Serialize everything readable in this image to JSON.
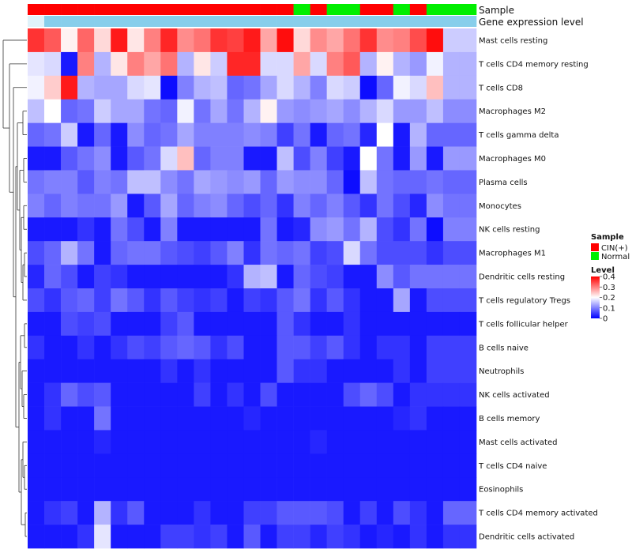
{
  "chart_data": {
    "type": "heatmap",
    "annotation_labels": {
      "sample": "Sample",
      "gene_level": "Gene expression level"
    },
    "sample_groups": [
      "CIN(+)",
      "CIN(+)",
      "CIN(+)",
      "CIN(+)",
      "CIN(+)",
      "CIN(+)",
      "CIN(+)",
      "CIN(+)",
      "CIN(+)",
      "CIN(+)",
      "CIN(+)",
      "CIN(+)",
      "CIN(+)",
      "CIN(+)",
      "CIN(+)",
      "CIN(+)",
      "Normal",
      "CIN(+)",
      "Normal",
      "Normal",
      "CIN(+)",
      "CIN(+)",
      "Normal",
      "CIN(+)",
      "Normal",
      "Normal",
      "Normal"
    ],
    "group_colors": {
      "CIN(+)": "#ff0000",
      "Normal": "#00ee00"
    },
    "gene_level_color": "#87ceeb",
    "gene_level_first_color": "#e0f2fa",
    "color_scale": {
      "low": "#0000ff",
      "mid": "#ffffff",
      "high": "#ff0000",
      "min": 0,
      "mid_value": 0.2,
      "max": 0.4
    },
    "rows": [
      "Mast cells resting",
      "T cells CD4 memory resting",
      "T cells CD8",
      "Macrophages M2",
      "T cells gamma delta",
      "Macrophages M0",
      "Plasma cells",
      "Monocytes",
      "NK cells resting",
      "Macrophages M1",
      "Dendritic cells resting",
      "T cells regulatory  Tregs",
      "T cells follicular helper",
      "B cells naive",
      "Neutrophils",
      "NK cells activated",
      "B cells memory",
      "Mast cells activated",
      "T cells CD4 naive",
      "Eosinophils",
      "T cells CD4 memory activated",
      "Dendritic cells activated"
    ],
    "values": [
      [
        0.36,
        0.33,
        0.21,
        0.32,
        0.23,
        0.38,
        0.22,
        0.3,
        0.37,
        0.29,
        0.31,
        0.36,
        0.35,
        0.38,
        0.27,
        0.39,
        0.23,
        0.29,
        0.27,
        0.31,
        0.36,
        0.29,
        0.3,
        0.34,
        0.39,
        0.16,
        0.16
      ],
      [
        0.18,
        0.17,
        0.02,
        0.3,
        0.14,
        0.22,
        0.3,
        0.27,
        0.31,
        0.14,
        0.22,
        0.16,
        0.37,
        0.37,
        0.17,
        0.17,
        0.27,
        0.17,
        0.3,
        0.33,
        0.14,
        0.21,
        0.14,
        0.12,
        0.19,
        0.14,
        0.14
      ],
      [
        0.19,
        0.24,
        0.38,
        0.14,
        0.13,
        0.13,
        0.17,
        0.18,
        0.01,
        0.1,
        0.14,
        0.15,
        0.08,
        0.09,
        0.13,
        0.17,
        0.14,
        0.1,
        0.17,
        0.16,
        0.01,
        0.08,
        0.19,
        0.17,
        0.25,
        0.14,
        0.14
      ],
      [
        0.15,
        0.2,
        0.08,
        0.09,
        0.16,
        0.13,
        0.13,
        0.09,
        0.08,
        0.19,
        0.09,
        0.13,
        0.09,
        0.14,
        0.21,
        0.12,
        0.11,
        0.12,
        0.13,
        0.11,
        0.14,
        0.17,
        0.12,
        0.12,
        0.15,
        0.11,
        0.11
      ],
      [
        0.08,
        0.09,
        0.16,
        0.02,
        0.08,
        0.02,
        0.11,
        0.08,
        0.09,
        0.13,
        0.1,
        0.1,
        0.1,
        0.11,
        0.1,
        0.05,
        0.09,
        0.02,
        0.08,
        0.09,
        0.03,
        0.2,
        0.02,
        0.14,
        0.08,
        0.08,
        0.08
      ],
      [
        0.02,
        0.02,
        0.07,
        0.09,
        0.11,
        0.02,
        0.07,
        0.09,
        0.17,
        0.25,
        0.08,
        0.1,
        0.1,
        0.02,
        0.02,
        0.15,
        0.06,
        0.1,
        0.05,
        0.02,
        0.2,
        0.09,
        0.02,
        0.12,
        0.02,
        0.12,
        0.12
      ],
      [
        0.09,
        0.1,
        0.1,
        0.07,
        0.1,
        0.09,
        0.15,
        0.15,
        0.11,
        0.09,
        0.13,
        0.12,
        0.11,
        0.12,
        0.08,
        0.12,
        0.11,
        0.11,
        0.08,
        0.01,
        0.15,
        0.09,
        0.08,
        0.08,
        0.09,
        0.08,
        0.08
      ],
      [
        0.1,
        0.08,
        0.1,
        0.09,
        0.09,
        0.12,
        0.02,
        0.07,
        0.13,
        0.08,
        0.1,
        0.11,
        0.08,
        0.06,
        0.08,
        0.04,
        0.1,
        0.08,
        0.1,
        0.07,
        0.04,
        0.09,
        0.06,
        0.03,
        0.11,
        0.09,
        0.09
      ],
      [
        0.02,
        0.02,
        0.02,
        0.04,
        0.02,
        0.09,
        0.06,
        0.02,
        0.1,
        0.02,
        0.02,
        0.02,
        0.02,
        0.02,
        0.09,
        0.02,
        0.03,
        0.11,
        0.12,
        0.09,
        0.14,
        0.06,
        0.04,
        0.09,
        0.01,
        0.1,
        0.1
      ],
      [
        0.06,
        0.08,
        0.14,
        0.09,
        0.02,
        0.08,
        0.09,
        0.09,
        0.07,
        0.06,
        0.05,
        0.07,
        0.1,
        0.04,
        0.09,
        0.08,
        0.09,
        0.05,
        0.06,
        0.17,
        0.09,
        0.06,
        0.06,
        0.06,
        0.04,
        0.06,
        0.06
      ],
      [
        0.03,
        0.08,
        0.06,
        0.02,
        0.05,
        0.04,
        0.02,
        0.02,
        0.02,
        0.02,
        0.02,
        0.02,
        0.04,
        0.14,
        0.15,
        0.02,
        0.08,
        0.06,
        0.05,
        0.02,
        0.02,
        0.11,
        0.07,
        0.09,
        0.09,
        0.09,
        0.09
      ],
      [
        0.06,
        0.04,
        0.07,
        0.08,
        0.05,
        0.09,
        0.07,
        0.04,
        0.07,
        0.05,
        0.04,
        0.05,
        0.02,
        0.05,
        0.04,
        0.07,
        0.09,
        0.04,
        0.07,
        0.04,
        0.02,
        0.02,
        0.13,
        0.02,
        0.06,
        0.06,
        0.06
      ],
      [
        0.02,
        0.02,
        0.06,
        0.05,
        0.06,
        0.02,
        0.02,
        0.02,
        0.05,
        0.07,
        0.02,
        0.02,
        0.02,
        0.02,
        0.02,
        0.07,
        0.04,
        0.02,
        0.02,
        0.04,
        0.02,
        0.02,
        0.02,
        0.02,
        0.02,
        0.02,
        0.02
      ],
      [
        0.04,
        0.02,
        0.02,
        0.04,
        0.02,
        0.04,
        0.06,
        0.05,
        0.07,
        0.08,
        0.07,
        0.04,
        0.06,
        0.02,
        0.02,
        0.07,
        0.07,
        0.05,
        0.07,
        0.04,
        0.02,
        0.04,
        0.04,
        0.02,
        0.05,
        0.05,
        0.05
      ],
      [
        0.02,
        0.02,
        0.02,
        0.02,
        0.02,
        0.02,
        0.02,
        0.02,
        0.04,
        0.02,
        0.04,
        0.02,
        0.02,
        0.02,
        0.02,
        0.07,
        0.04,
        0.04,
        0.02,
        0.02,
        0.02,
        0.02,
        0.04,
        0.02,
        0.05,
        0.05,
        0.05
      ],
      [
        0.02,
        0.04,
        0.08,
        0.06,
        0.07,
        0.02,
        0.02,
        0.02,
        0.02,
        0.02,
        0.05,
        0.02,
        0.04,
        0.02,
        0.06,
        0.02,
        0.02,
        0.02,
        0.02,
        0.06,
        0.08,
        0.06,
        0.02,
        0.04,
        0.04,
        0.04,
        0.04
      ],
      [
        0.02,
        0.04,
        0.02,
        0.02,
        0.09,
        0.02,
        0.02,
        0.02,
        0.02,
        0.02,
        0.02,
        0.02,
        0.02,
        0.03,
        0.02,
        0.02,
        0.02,
        0.02,
        0.02,
        0.02,
        0.02,
        0.02,
        0.03,
        0.04,
        0.02,
        0.02,
        0.02
      ],
      [
        0.02,
        0.02,
        0.02,
        0.02,
        0.03,
        0.02,
        0.02,
        0.02,
        0.02,
        0.02,
        0.02,
        0.02,
        0.02,
        0.02,
        0.02,
        0.02,
        0.02,
        0.03,
        0.02,
        0.02,
        0.02,
        0.02,
        0.02,
        0.02,
        0.02,
        0.02,
        0.02
      ],
      [
        0.02,
        0.02,
        0.02,
        0.02,
        0.02,
        0.02,
        0.02,
        0.02,
        0.02,
        0.02,
        0.02,
        0.02,
        0.02,
        0.02,
        0.02,
        0.02,
        0.02,
        0.02,
        0.02,
        0.02,
        0.02,
        0.02,
        0.02,
        0.02,
        0.02,
        0.02,
        0.02
      ],
      [
        0.02,
        0.02,
        0.02,
        0.02,
        0.02,
        0.02,
        0.02,
        0.02,
        0.02,
        0.02,
        0.02,
        0.02,
        0.02,
        0.02,
        0.02,
        0.02,
        0.02,
        0.02,
        0.02,
        0.02,
        0.02,
        0.02,
        0.02,
        0.02,
        0.02,
        0.02,
        0.02
      ],
      [
        0.02,
        0.04,
        0.05,
        0.02,
        0.14,
        0.04,
        0.07,
        0.02,
        0.02,
        0.02,
        0.04,
        0.02,
        0.02,
        0.05,
        0.05,
        0.07,
        0.07,
        0.07,
        0.06,
        0.02,
        0.05,
        0.02,
        0.06,
        0.04,
        0.02,
        0.08,
        0.08
      ],
      [
        0.02,
        0.02,
        0.02,
        0.04,
        0.18,
        0.02,
        0.02,
        0.02,
        0.05,
        0.05,
        0.04,
        0.05,
        0.02,
        0.07,
        0.02,
        0.05,
        0.05,
        0.03,
        0.05,
        0.04,
        0.02,
        0.03,
        0.02,
        0.04,
        0.02,
        0.04,
        0.04
      ]
    ],
    "legend": {
      "sample_title": "Sample",
      "sample_items": [
        "CIN(+)",
        "Normal"
      ],
      "level_title": "Level",
      "level_ticks": [
        0.4,
        0.3,
        0.2,
        0.1,
        0
      ]
    },
    "dendrogram": "row clustering (left side)"
  }
}
